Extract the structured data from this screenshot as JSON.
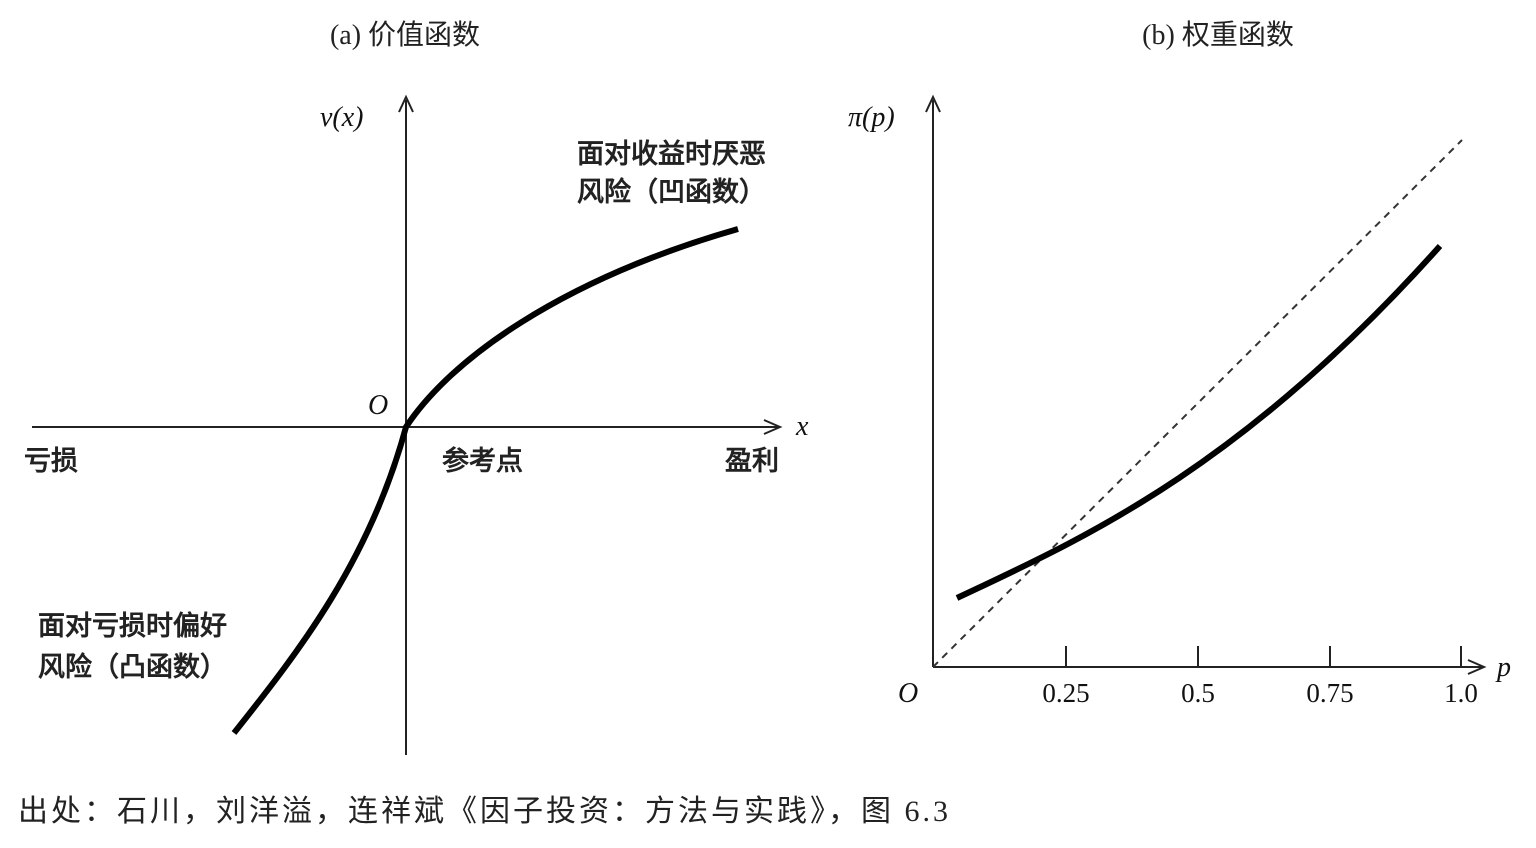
{
  "panel_a": {
    "title": "(a) 价值函数",
    "y_label": "v(x)",
    "x_label": "x",
    "origin": "O",
    "loss_label": "亏损",
    "reference_label": "参考点",
    "gain_label": "盈利",
    "gain_note_line1": "面对收益时厌恶",
    "gain_note_line2": "风险（凹函数）",
    "loss_note_line1": "面对亏损时偏好",
    "loss_note_line2": "风险（凸函数）"
  },
  "panel_b": {
    "title": "(b) 权重函数",
    "y_label": "π(p)",
    "x_label": "p",
    "origin": "O",
    "ticks": [
      "0.25",
      "0.5",
      "0.75",
      "1.0"
    ]
  },
  "caption": "出处：石川，刘洋溢，连祥斌《因子投资：方法与实践》，图 6.3"
}
